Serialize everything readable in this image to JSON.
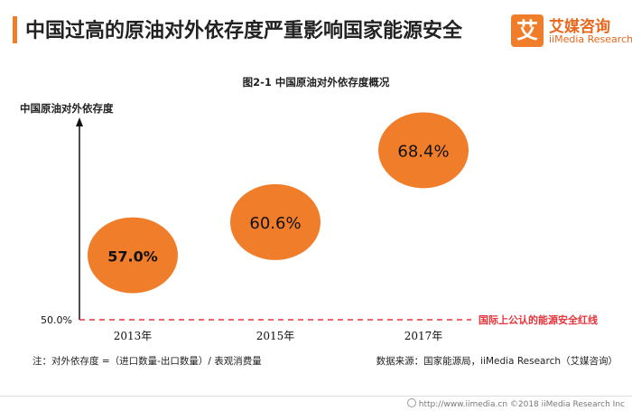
{
  "header": {
    "title": "中国过高的原油对外依存度严重影响国家能源安全",
    "accent_color": "#f07d2a"
  },
  "logo": {
    "mark": "艾",
    "name_cn": "艾媒咨询",
    "name_en": "iiMedia Research"
  },
  "chart_data": {
    "type": "scatter",
    "title": "图2-1 中国原油对外依存度概况",
    "ylabel": "中国原油对外依存度",
    "xlabel": "",
    "categories": [
      "2013年",
      "2015年",
      "2017年"
    ],
    "values": [
      57.0,
      60.6,
      68.4
    ],
    "value_labels": [
      "57.0%",
      "60.6%",
      "68.4%"
    ],
    "y_tick_label": "50.0%",
    "baseline_value": 50.0,
    "baseline_label": "国际上公认的能源安全红线",
    "baseline_color": "#e8333a",
    "marker_color": "#f07d2a",
    "marker_style": "bubble"
  },
  "notes": {
    "left": "注：对外依存度 =（进口数量-出口数量）/ 表观消费量",
    "right": "数据来源：国家能源局，iiMedia Research（艾媒咨询）"
  },
  "footer": {
    "text": "http://www.iimedia.cn   ©2018  iiMedia Research  Inc"
  }
}
